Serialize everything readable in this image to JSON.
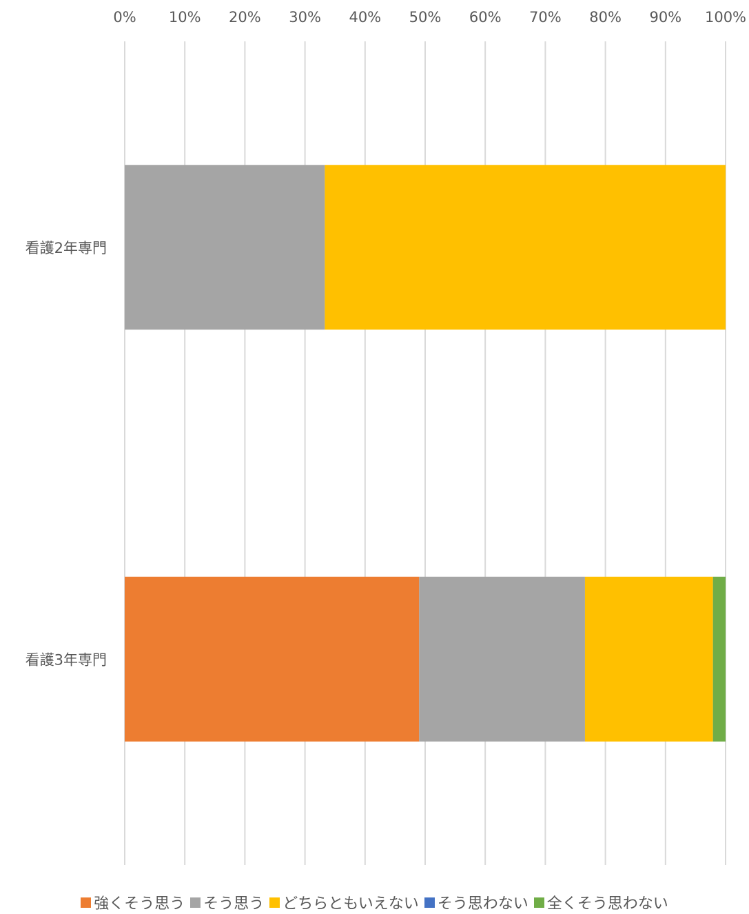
{
  "chart_data": {
    "type": "bar",
    "orientation": "horizontal",
    "stacked": "percent",
    "categories": [
      "看護2年専門",
      "看護3年専門"
    ],
    "series": [
      {
        "name": "強くそう思う",
        "color": "#ED7D31",
        "values": [
          0,
          49
        ]
      },
      {
        "name": "そう思う",
        "color": "#A5A5A5",
        "values": [
          33.3,
          27.6
        ]
      },
      {
        "name": "どちらともいえない",
        "color": "#FFC000",
        "values": [
          66.7,
          21.3
        ]
      },
      {
        "name": "そう思わない",
        "color": "#4472C4",
        "values": [
          0,
          0
        ]
      },
      {
        "name": "全くそう思わない",
        "color": "#70AD47",
        "values": [
          0,
          2.1
        ]
      }
    ],
    "xlim": [
      0,
      100
    ],
    "x_ticks": [
      "0%",
      "10%",
      "20%",
      "30%",
      "40%",
      "50%",
      "60%",
      "70%",
      "80%",
      "90%",
      "100%"
    ],
    "x_axis_position": "top",
    "grid": true,
    "gridline_color": "#D9D9D9",
    "legend_position": "bottom"
  }
}
